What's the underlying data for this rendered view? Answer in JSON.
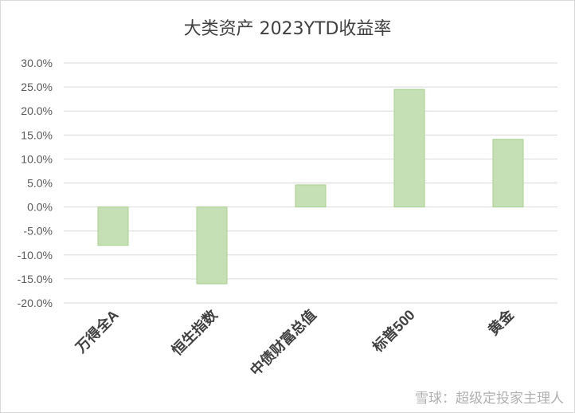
{
  "chart_data": {
    "type": "bar",
    "title": "大类资产 2023YTD收益率",
    "categories": [
      "万得全A",
      "恒生指数",
      "中债财富总值",
      "标普500",
      "黄金"
    ],
    "values": [
      -0.08,
      -0.16,
      0.046,
      0.245,
      0.141
    ],
    "ylim": [
      -0.2,
      0.3
    ],
    "yticks": [
      0.3,
      0.25,
      0.2,
      0.15,
      0.1,
      0.05,
      0.0,
      -0.05,
      -0.1,
      -0.15,
      -0.2
    ],
    "ytick_labels": [
      "30.0%",
      "25.0%",
      "20.0%",
      "15.0%",
      "10.0%",
      "5.0%",
      "0.0%",
      "-5.0%",
      "-10.0%",
      "-15.0%",
      "-20.0%"
    ],
    "xlabel": "",
    "ylabel": "",
    "grid": true,
    "bar_color": "#c5e0b4",
    "bar_stroke": "#a9d18e",
    "grid_color": "#d9d9d9"
  },
  "watermark": "雪球：超级定投家主理人"
}
